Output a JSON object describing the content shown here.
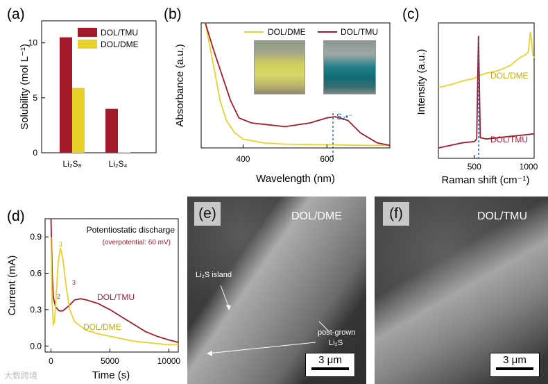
{
  "panels": {
    "a": "(a)",
    "b": "(b)",
    "c": "(c)",
    "d": "(d)",
    "e": "(e)",
    "f": "(f)"
  },
  "colors": {
    "tmu": "#a31a2a",
    "dme": "#e8d22a",
    "dashed": "#1c6aa8"
  },
  "chart_data": [
    {
      "id": "a",
      "type": "bar",
      "ylabel": "Solubility (mol L⁻¹)",
      "categories": [
        "Li₂S₈",
        "Li₂S₄"
      ],
      "series": [
        {
          "name": "DOL/TMU",
          "values": [
            10.5,
            4.0
          ]
        },
        {
          "name": "DOL/DME",
          "values": [
            5.9,
            0.05
          ]
        }
      ],
      "ylim": [
        0,
        12
      ],
      "yticks": [
        "0",
        "5",
        "10"
      ],
      "legend": "top-right"
    },
    {
      "id": "b",
      "type": "line",
      "xlabel": "Wavelength (nm)",
      "ylabel": "Absorbance (a.u.)",
      "xlim": [
        300,
        750
      ],
      "xticks": [
        "400",
        "600"
      ],
      "series": [
        {
          "name": "DOL/DME",
          "x": [
            310,
            330,
            345,
            360,
            380,
            400,
            450,
            500,
            600,
            700,
            750
          ],
          "y": [
            1.0,
            0.65,
            0.38,
            0.22,
            0.12,
            0.07,
            0.04,
            0.03,
            0.025,
            0.02,
            0.02
          ]
        },
        {
          "name": "DOL/TMU",
          "x": [
            310,
            330,
            350,
            370,
            390,
            420,
            500,
            560,
            600,
            620,
            650,
            680,
            720,
            750
          ],
          "y": [
            1.0,
            0.78,
            0.58,
            0.38,
            0.24,
            0.2,
            0.17,
            0.2,
            0.24,
            0.25,
            0.22,
            0.12,
            0.04,
            0.02
          ]
        }
      ],
      "annotation": "S₃•⁻",
      "marker_x": 620,
      "legend": "top"
    },
    {
      "id": "c",
      "type": "line",
      "xlabel": "Raman shift (cm⁻¹)",
      "ylabel": "Intensity (a.u.)",
      "xlim": [
        200,
        1000
      ],
      "xticks": [
        "500",
        "1000"
      ],
      "series": [
        {
          "name": "DOL/DME",
          "x": [
            200,
            300,
            400,
            500,
            535,
            600,
            700,
            800,
            880,
            920,
            950,
            970,
            990,
            1000
          ],
          "y": [
            0.55,
            0.57,
            0.6,
            0.62,
            0.64,
            0.66,
            0.68,
            0.72,
            0.78,
            0.8,
            0.82,
            0.98,
            0.8,
            0.78
          ]
        },
        {
          "name": "DOL/TMU",
          "x": [
            200,
            300,
            400,
            500,
            520,
            535,
            550,
            600,
            700,
            800,
            900,
            1000
          ],
          "y": [
            0.08,
            0.1,
            0.12,
            0.13,
            0.15,
            0.95,
            0.16,
            0.15,
            0.16,
            0.17,
            0.18,
            0.19
          ]
        }
      ],
      "marker_x": 535
    },
    {
      "id": "d",
      "type": "line",
      "title": "Potentiostatic discharge",
      "subtitle": "(overpotential: 60 mV)",
      "xlabel": "Time (s)",
      "ylabel": "Current (mA)",
      "xlim": [
        -500,
        10800
      ],
      "ylim": [
        -0.05,
        1.05
      ],
      "xticks": [
        "0",
        "5000",
        "10000"
      ],
      "yticks": [
        "0.0",
        "0.3",
        "0.6",
        "0.9"
      ],
      "series": [
        {
          "name": "DOL/TMU",
          "x": [
            0,
            100,
            200,
            400,
            700,
            1000,
            1500,
            2000,
            2500,
            3000,
            4000,
            5000,
            6000,
            7000,
            8000,
            9000,
            10000,
            10800
          ],
          "y": [
            1.05,
            0.6,
            0.4,
            0.32,
            0.29,
            0.29,
            0.33,
            0.38,
            0.39,
            0.38,
            0.35,
            0.3,
            0.24,
            0.18,
            0.12,
            0.08,
            0.05,
            0.03
          ]
        },
        {
          "name": "DOL/DME",
          "x": [
            0,
            100,
            200,
            300,
            400,
            600,
            800,
            1000,
            1300,
            1600,
            2000,
            3000,
            4000,
            5000,
            6000,
            7000,
            8000,
            9000,
            10000,
            10800
          ],
          "y": [
            0.9,
            0.35,
            0.18,
            0.2,
            0.35,
            0.68,
            0.81,
            0.72,
            0.48,
            0.3,
            0.2,
            0.13,
            0.1,
            0.08,
            0.06,
            0.04,
            0.03,
            0.02,
            0.01,
            0.01
          ]
        }
      ],
      "annotations": [
        "2",
        "3",
        "2",
        "3"
      ]
    }
  ],
  "labels": {
    "b_tick_ann": "S₃•⁻",
    "c_dme": "DOL/DME",
    "c_tmu": "DOL/TMU",
    "d_tmu": "DOL/TMU",
    "d_dme": "DOL/DME"
  },
  "sem": {
    "e_title": "DOL/DME",
    "e_island": "Li₂S island",
    "e_post1": "post-grown",
    "e_post2": "Li₂S",
    "e_scale": "3 μm",
    "f_title": "DOL/TMU",
    "f_scale": "3 μm"
  },
  "watermark": "大数跨境"
}
